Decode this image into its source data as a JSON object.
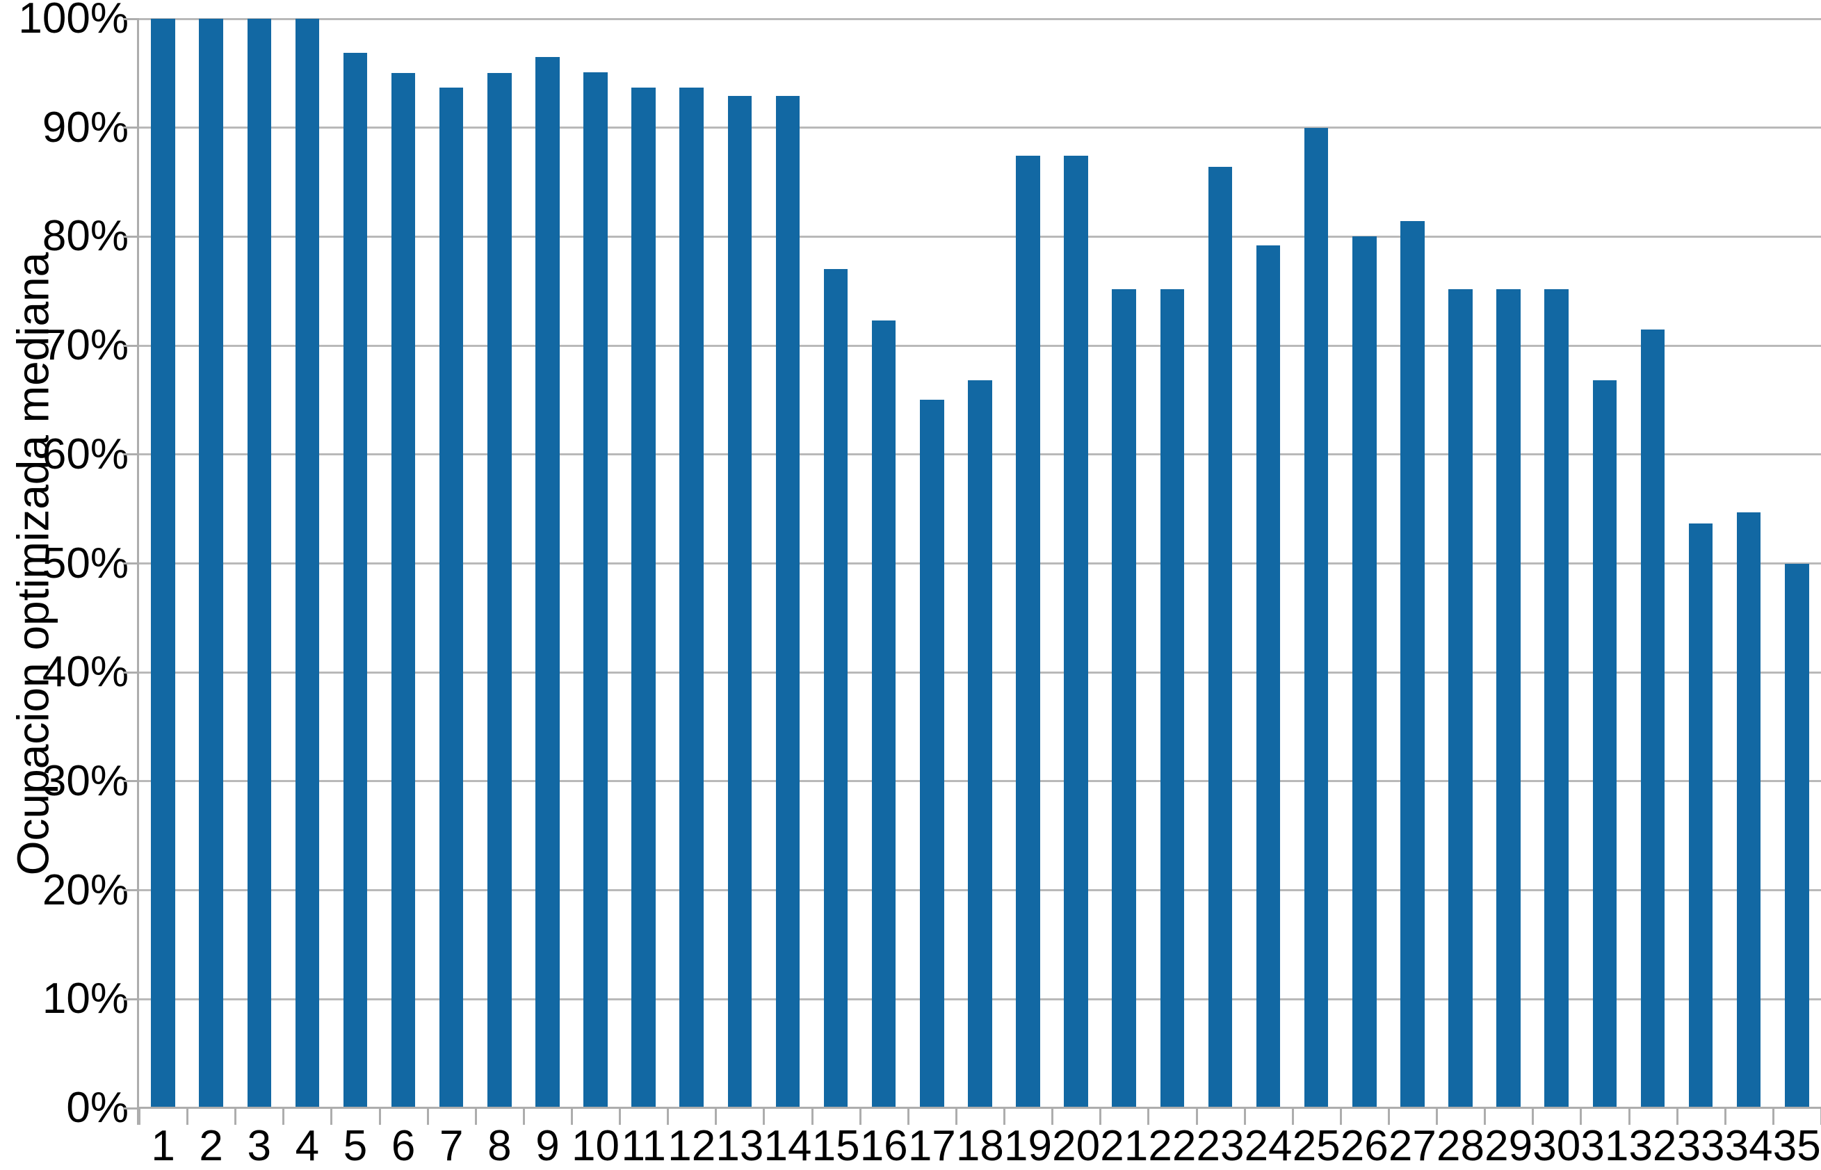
{
  "chart_data": {
    "type": "bar",
    "title": "",
    "xlabel": "",
    "ylabel": "Ocupacion optimizada mediana",
    "categories": [
      "1",
      "2",
      "3",
      "4",
      "5",
      "6",
      "7",
      "8",
      "9",
      "10",
      "11",
      "12",
      "13",
      "14",
      "15",
      "16",
      "17",
      "18",
      "19",
      "20",
      "21",
      "22",
      "23",
      "24",
      "25",
      "26",
      "27",
      "28",
      "29",
      "30",
      "31",
      "32",
      "33",
      "34",
      "35"
    ],
    "values": [
      100,
      100,
      100,
      100,
      96.9,
      95.0,
      93.7,
      95.0,
      96.5,
      95.1,
      93.7,
      93.7,
      92.9,
      92.9,
      77.0,
      72.3,
      65.0,
      66.8,
      87.4,
      87.4,
      75.2,
      75.2,
      86.4,
      79.2,
      90.0,
      80.0,
      81.4,
      75.2,
      75.2,
      75.2,
      66.8,
      71.5,
      53.7,
      54.7,
      50.0
    ],
    "ylim": [
      0,
      100
    ],
    "yticks": [
      0,
      10,
      20,
      30,
      40,
      50,
      60,
      70,
      80,
      90,
      100
    ],
    "ytick_labels": [
      "0%",
      "10%",
      "20%",
      "30%",
      "40%",
      "50%",
      "60%",
      "70%",
      "80%",
      "90%",
      "100%"
    ],
    "grid": "horizontal gridlines every 10%, light gray",
    "legend": "none",
    "colors": {
      "bar": "#1268a3",
      "gridline": "#b9b9b9",
      "axis": "#adadad",
      "text": "#000000",
      "background": "#ffffff"
    }
  }
}
